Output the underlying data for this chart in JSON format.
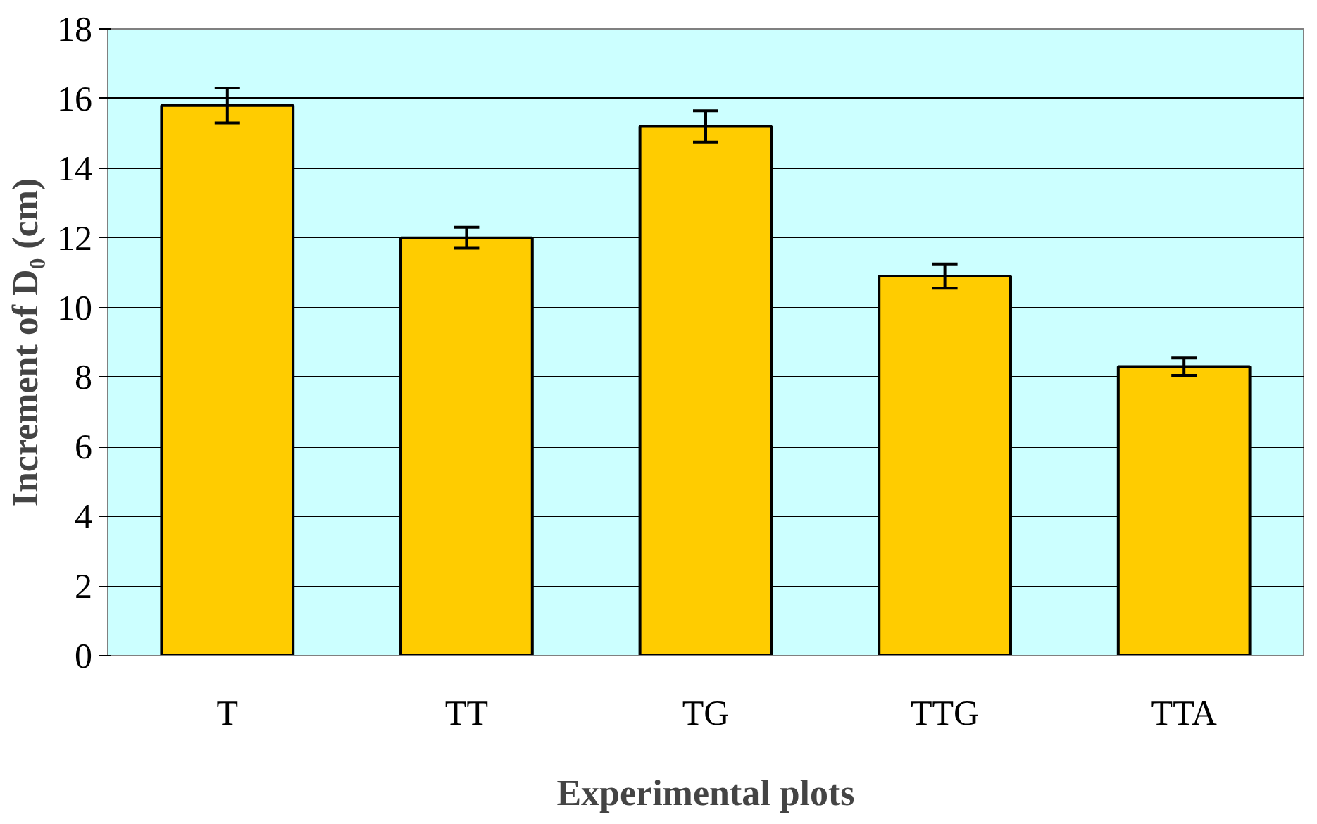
{
  "chart_data": {
    "type": "bar",
    "xlabel": "Experimental plots",
    "ylabel": "Increment of D₀ (cm)",
    "categories": [
      "T",
      "TT",
      "TG",
      "TTG",
      "TTA"
    ],
    "values": [
      15.8,
      12.0,
      15.2,
      10.9,
      8.3
    ],
    "errors": [
      0.5,
      0.3,
      0.45,
      0.35,
      0.25
    ],
    "color": "#ffcc00",
    "ylim": [
      0,
      18
    ],
    "yticks": [
      0,
      2,
      4,
      6,
      8,
      10,
      12,
      14,
      16,
      18
    ],
    "grid": "y"
  }
}
